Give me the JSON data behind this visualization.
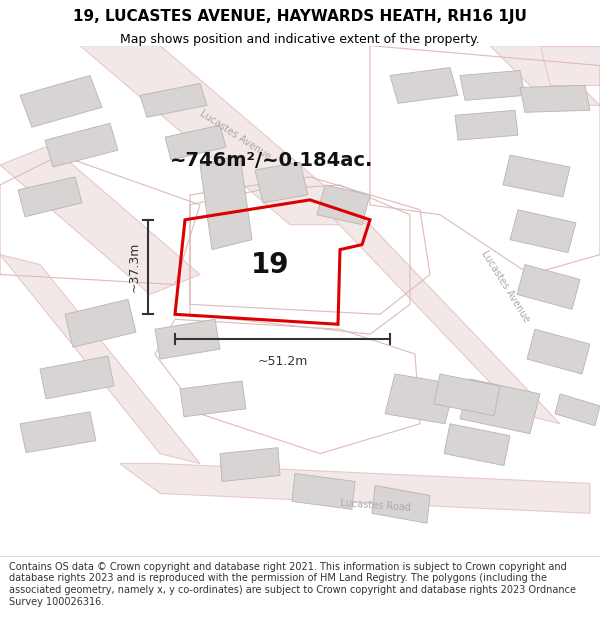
{
  "title_line1": "19, LUCASTES AVENUE, HAYWARDS HEATH, RH16 1JU",
  "title_line2": "Map shows position and indicative extent of the property.",
  "footer_text": "Contains OS data © Crown copyright and database right 2021. This information is subject to Crown copyright and database rights 2023 and is reproduced with the permission of HM Land Registry. The polygons (including the associated geometry, namely x, y co-ordinates) are subject to Crown copyright and database rights 2023 Ordnance Survey 100026316.",
  "area_label": "~746m²/~0.184ac.",
  "property_number": "19",
  "dim_width": "~51.2m",
  "dim_height": "~37.3m",
  "map_bg": "#faf8f8",
  "plot_color": "#dd0000",
  "building_fill": "#d8d4d4",
  "building_edge": "#b8b4b4",
  "road_fill": "#f2e8e8",
  "road_edge": "#e8c8c8",
  "road_label_color": "#aaaaaa",
  "dim_color": "#333333",
  "title_fontsize": 11,
  "subtitle_fontsize": 9,
  "footer_fontsize": 7,
  "area_fontsize": 14,
  "number_fontsize": 20,
  "road_label_fontsize": 7,
  "dim_fontsize": 9
}
